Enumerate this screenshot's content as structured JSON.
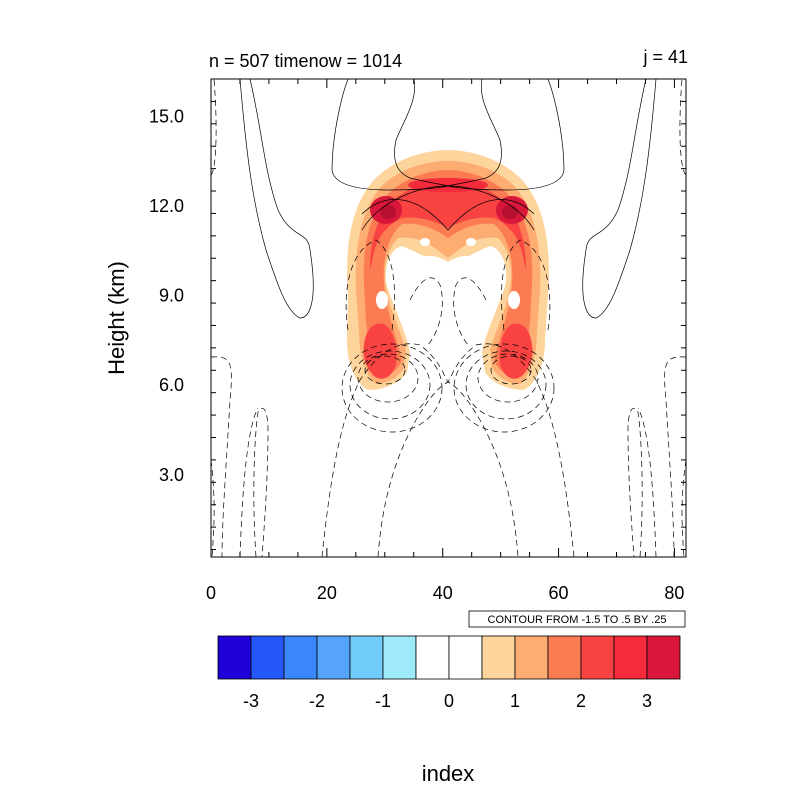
{
  "chart_data": {
    "type": "contour",
    "title_left": "n = 507 timenow = 1014",
    "title_right": "j = 41",
    "xlabel": "index",
    "ylabel": "Height (km)",
    "xlim": [
      0,
      82
    ],
    "ylim": [
      0.25,
      16.25
    ],
    "xticks": [
      0,
      20,
      40,
      60,
      80
    ],
    "xtick_labels": [
      "0",
      "20",
      "40",
      "60",
      "80"
    ],
    "yticks": [
      3.0,
      6.0,
      9.0,
      12.0,
      15.0
    ],
    "ytick_labels": [
      "3.0",
      "6.0",
      "9.0",
      "12.0",
      "15.0"
    ],
    "contour_info": "CONTOUR FROM -1.5 TO .5 BY .25",
    "colorbar": {
      "levels": [
        -3.5,
        -3,
        -2.5,
        -2,
        -1.5,
        -1,
        -0.5,
        0,
        0.5,
        1,
        1.5,
        2,
        2.5,
        3,
        3.5
      ],
      "colors": [
        "#1f00d9",
        "#2457fb",
        "#3a86fb",
        "#55a3fb",
        "#70cdfb",
        "#9eeafb",
        "#ffffff",
        "#ffffff",
        "#fdd49c",
        "#fdac72",
        "#fb7b52",
        "#f94242",
        "#f52a3a",
        "#d9173a"
      ],
      "tick_values": [
        -3,
        -2,
        -1,
        0,
        1,
        2,
        3
      ],
      "tick_labels": [
        "-3",
        "-2",
        "-1",
        "0",
        "1",
        "2",
        "3"
      ]
    },
    "filled_field": {
      "description_peaks": [
        {
          "x": 30,
          "y": 12.0,
          "value": 3.0
        },
        {
          "x": 52,
          "y": 12.0,
          "value": 3.0
        },
        {
          "x": 41,
          "y": 12.8,
          "value": 2.5
        },
        {
          "x": 31,
          "y": 6.3,
          "value": 2.0
        },
        {
          "x": 51,
          "y": 6.3,
          "value": 2.0
        }
      ]
    }
  }
}
